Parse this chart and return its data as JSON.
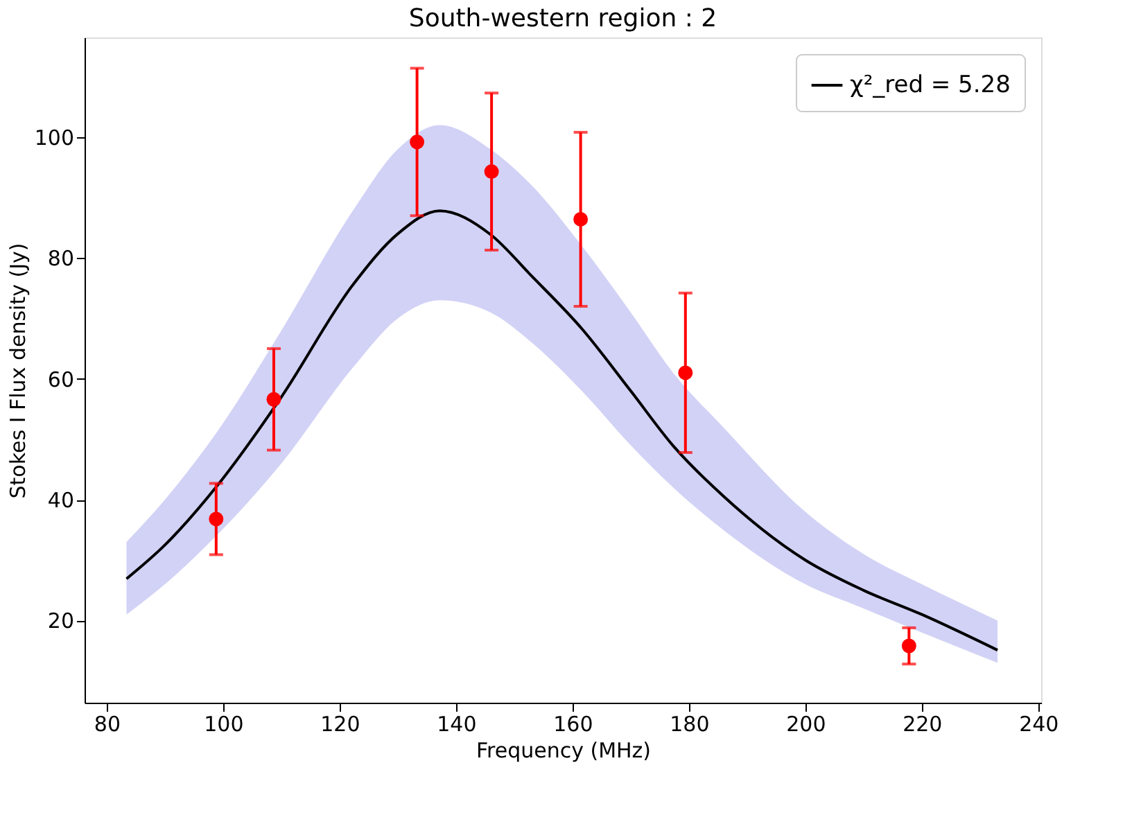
{
  "chart_data": {
    "type": "scatter",
    "title": "South-western region : 2",
    "xlabel": "Frequency (MHz)",
    "ylabel": "Stokes I Flux density (Jy)",
    "xlim": [
      76.2,
      240.5
    ],
    "ylim": [
      6.4,
      116.5
    ],
    "xticks": [
      80,
      100,
      120,
      140,
      160,
      180,
      200,
      220,
      240
    ],
    "yticks": [
      20,
      40,
      60,
      80,
      100
    ],
    "grid": false,
    "legend": "top right",
    "series": [
      {
        "color": "#ff0000",
        "marker": "circle",
        "x": [
          98.8,
          108.7,
          133.3,
          146.1,
          161.4,
          179.4,
          217.8
        ],
        "values": [
          36.8,
          56.6,
          99.2,
          94.3,
          86.4,
          61.0,
          15.8
        ],
        "errors": [
          5.9,
          8.4,
          12.2,
          13.0,
          14.4,
          13.2,
          3.0
        ]
      },
      {
        "type": "line",
        "name": "χ²_red = 5.28",
        "color": "#000000",
        "marker": "none",
        "line_style": "solid",
        "x": [
          83.4,
          90,
          98.8,
          110,
          122.4,
          130,
          137.2,
          145.9,
          153,
          161.6,
          170,
          177.3,
          185.9,
          200,
          210,
          220,
          233
        ],
        "values": [
          26.9,
          32.5,
          42.1,
          57,
          75.7,
          84,
          87.8,
          83.9,
          77,
          68.3,
          58,
          48.9,
          40.6,
          30,
          25,
          21,
          15.1
        ],
        "lower": [
          21,
          26,
          34,
          46,
          62,
          70,
          73,
          71,
          66,
          58,
          49,
          42,
          35,
          26,
          22,
          18,
          13
        ],
        "upper": [
          33,
          40,
          51,
          68,
          88,
          98,
          102,
          98,
          92,
          82,
          71,
          61,
          52,
          38,
          31,
          26,
          20
        ]
      }
    ]
  }
}
